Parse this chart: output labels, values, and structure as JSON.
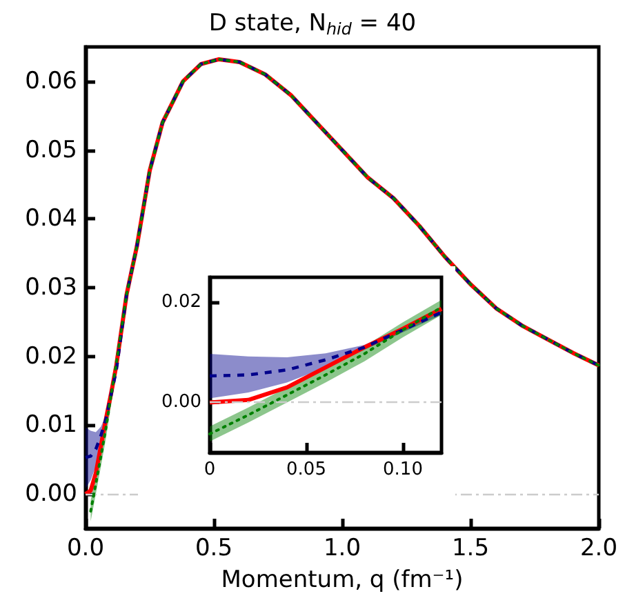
{
  "chart_data": [
    {
      "type": "line",
      "title": "D state, N$_{hid}$ = 40",
      "xlabel": "Momentum, q (fm⁻¹)",
      "x": [
        0,
        0.02,
        0.04,
        0.06,
        0.08,
        0.1,
        0.12,
        0.16,
        0.2,
        0.25,
        0.3,
        0.38,
        0.45,
        0.52,
        0.6,
        0.7,
        0.8,
        0.9,
        1.0,
        1.1,
        1.2,
        1.3,
        1.4,
        1.5,
        1.6,
        1.7,
        1.8,
        1.9,
        2.0
      ],
      "series": [
        {
          "color": "#ff0000",
          "line_style": "solid",
          "values": [
            0,
            0.0005,
            0.003,
            0.007,
            0.011,
            0.0147,
            0.0187,
            0.029,
            0.036,
            0.047,
            0.054,
            0.06,
            0.0625,
            0.0632,
            0.0628,
            0.061,
            0.058,
            0.054,
            0.05,
            0.046,
            0.043,
            0.039,
            0.0345,
            0.0305,
            0.027,
            0.0245,
            0.0225,
            0.0205,
            0.0187
          ]
        },
        {
          "color": "#00008b",
          "line_style": "dashed",
          "values": [
            0.0053,
            0.0055,
            0.0065,
            0.0085,
            0.011,
            0.0145,
            0.018,
            0.029,
            0.036,
            0.047,
            0.054,
            0.06,
            0.0625,
            0.0632,
            0.0628,
            0.061,
            0.058,
            0.054,
            0.05,
            0.046,
            0.043,
            0.039,
            0.0345,
            0.0305,
            0.027,
            0.0245,
            0.0225,
            0.0205,
            0.0187
          ],
          "lower": [
            0.0008,
            0.002,
            0.004,
            0.007,
            0.0105,
            0.014,
            0.0175,
            null,
            null,
            null,
            null,
            null,
            null,
            null,
            null,
            null,
            null,
            null,
            null,
            null,
            null,
            null,
            null,
            null,
            null,
            null,
            null,
            null,
            null
          ],
          "upper": [
            0.0097,
            0.0092,
            0.009,
            0.0098,
            0.0115,
            0.015,
            0.0188,
            null,
            null,
            null,
            null,
            null,
            null,
            null,
            null,
            null,
            null,
            null,
            null,
            null,
            null,
            null,
            null,
            null,
            null,
            null,
            null,
            null,
            null
          ]
        },
        {
          "color": "#008000",
          "line_style": "dotted",
          "values": [
            null,
            -0.0025,
            0.0015,
            0.0055,
            0.0097,
            0.0145,
            0.019,
            0.029,
            0.036,
            0.047,
            0.054,
            0.06,
            0.0625,
            0.0632,
            0.0628,
            0.061,
            0.058,
            0.054,
            0.05,
            0.046,
            0.043,
            0.039,
            0.0345,
            0.0305,
            0.027,
            0.0245,
            0.0225,
            0.0205,
            0.0187
          ],
          "lower": [
            null,
            -0.004,
            0,
            0.004,
            0.0082,
            0.013,
            0.0175,
            null,
            null,
            null,
            null,
            null,
            null,
            null,
            null,
            null,
            null,
            null,
            null,
            null,
            null,
            null,
            null,
            null,
            null,
            null,
            null,
            null,
            null
          ],
          "upper": [
            null,
            -0.001,
            0.003,
            0.007,
            0.0112,
            0.016,
            0.0205,
            null,
            null,
            null,
            null,
            null,
            null,
            null,
            null,
            null,
            null,
            null,
            null,
            null,
            null,
            null,
            null,
            null,
            null,
            null,
            null,
            null,
            null
          ]
        }
      ],
      "xlim": [
        0,
        2.0
      ],
      "xticks": [
        {
          "value": 0,
          "label": "0.0"
        },
        {
          "value": 0.5,
          "label": "0.5"
        },
        {
          "value": 1.0,
          "label": "1.0"
        },
        {
          "value": 1.5,
          "label": "1.5"
        },
        {
          "value": 2.0,
          "label": "2.0"
        }
      ],
      "ylim": [
        -0.005,
        0.065
      ],
      "yticks": [
        {
          "value": 0,
          "label": "0.00"
        },
        0.01,
        0.02,
        0.03,
        0.04,
        0.05,
        0.06
      ],
      "ref_lines": [
        {
          "axis": "y",
          "value": 0,
          "color": "#cccccc",
          "line_style": "dashdot"
        }
      ]
    },
    {
      "type": "line",
      "x": [
        0,
        0.02,
        0.04,
        0.06,
        0.08,
        0.1,
        0.12
      ],
      "series": [
        {
          "color": "#ff0000",
          "line_style": "solid",
          "values": [
            0,
            0.0005,
            0.003,
            0.007,
            0.011,
            0.0147,
            0.0187
          ]
        },
        {
          "color": "#00008b",
          "line_style": "dashed",
          "values": [
            0.0053,
            0.0055,
            0.0065,
            0.0085,
            0.011,
            0.0145,
            0.018
          ],
          "lower": [
            0.0008,
            0.002,
            0.004,
            0.007,
            0.0105,
            0.014,
            0.0175
          ],
          "upper": [
            0.0097,
            0.0092,
            0.009,
            0.0098,
            0.0115,
            0.015,
            0.0188
          ]
        },
        {
          "color": "#008000",
          "line_style": "dotted",
          "values": [
            -0.0063,
            -0.0025,
            0.0015,
            0.0055,
            0.0097,
            0.0145,
            0.019
          ],
          "lower": [
            -0.0078,
            -0.004,
            0,
            0.004,
            0.0082,
            0.013,
            0.0175
          ],
          "upper": [
            -0.0048,
            -0.001,
            0.003,
            0.007,
            0.0112,
            0.016,
            0.0205
          ]
        }
      ],
      "xlim": [
        0,
        0.12
      ],
      "xticks": [
        {
          "value": 0,
          "label": "0"
        },
        0.05,
        {
          "value": 0.1,
          "label": "0.10"
        }
      ],
      "ylim": [
        -0.01,
        0.025
      ],
      "yticks": [
        {
          "value": 0,
          "label": "0.00"
        },
        0.02
      ],
      "ref_lines": [
        {
          "axis": "y",
          "value": 0,
          "color": "#cccccc",
          "line_style": "dashdot"
        }
      ]
    }
  ]
}
